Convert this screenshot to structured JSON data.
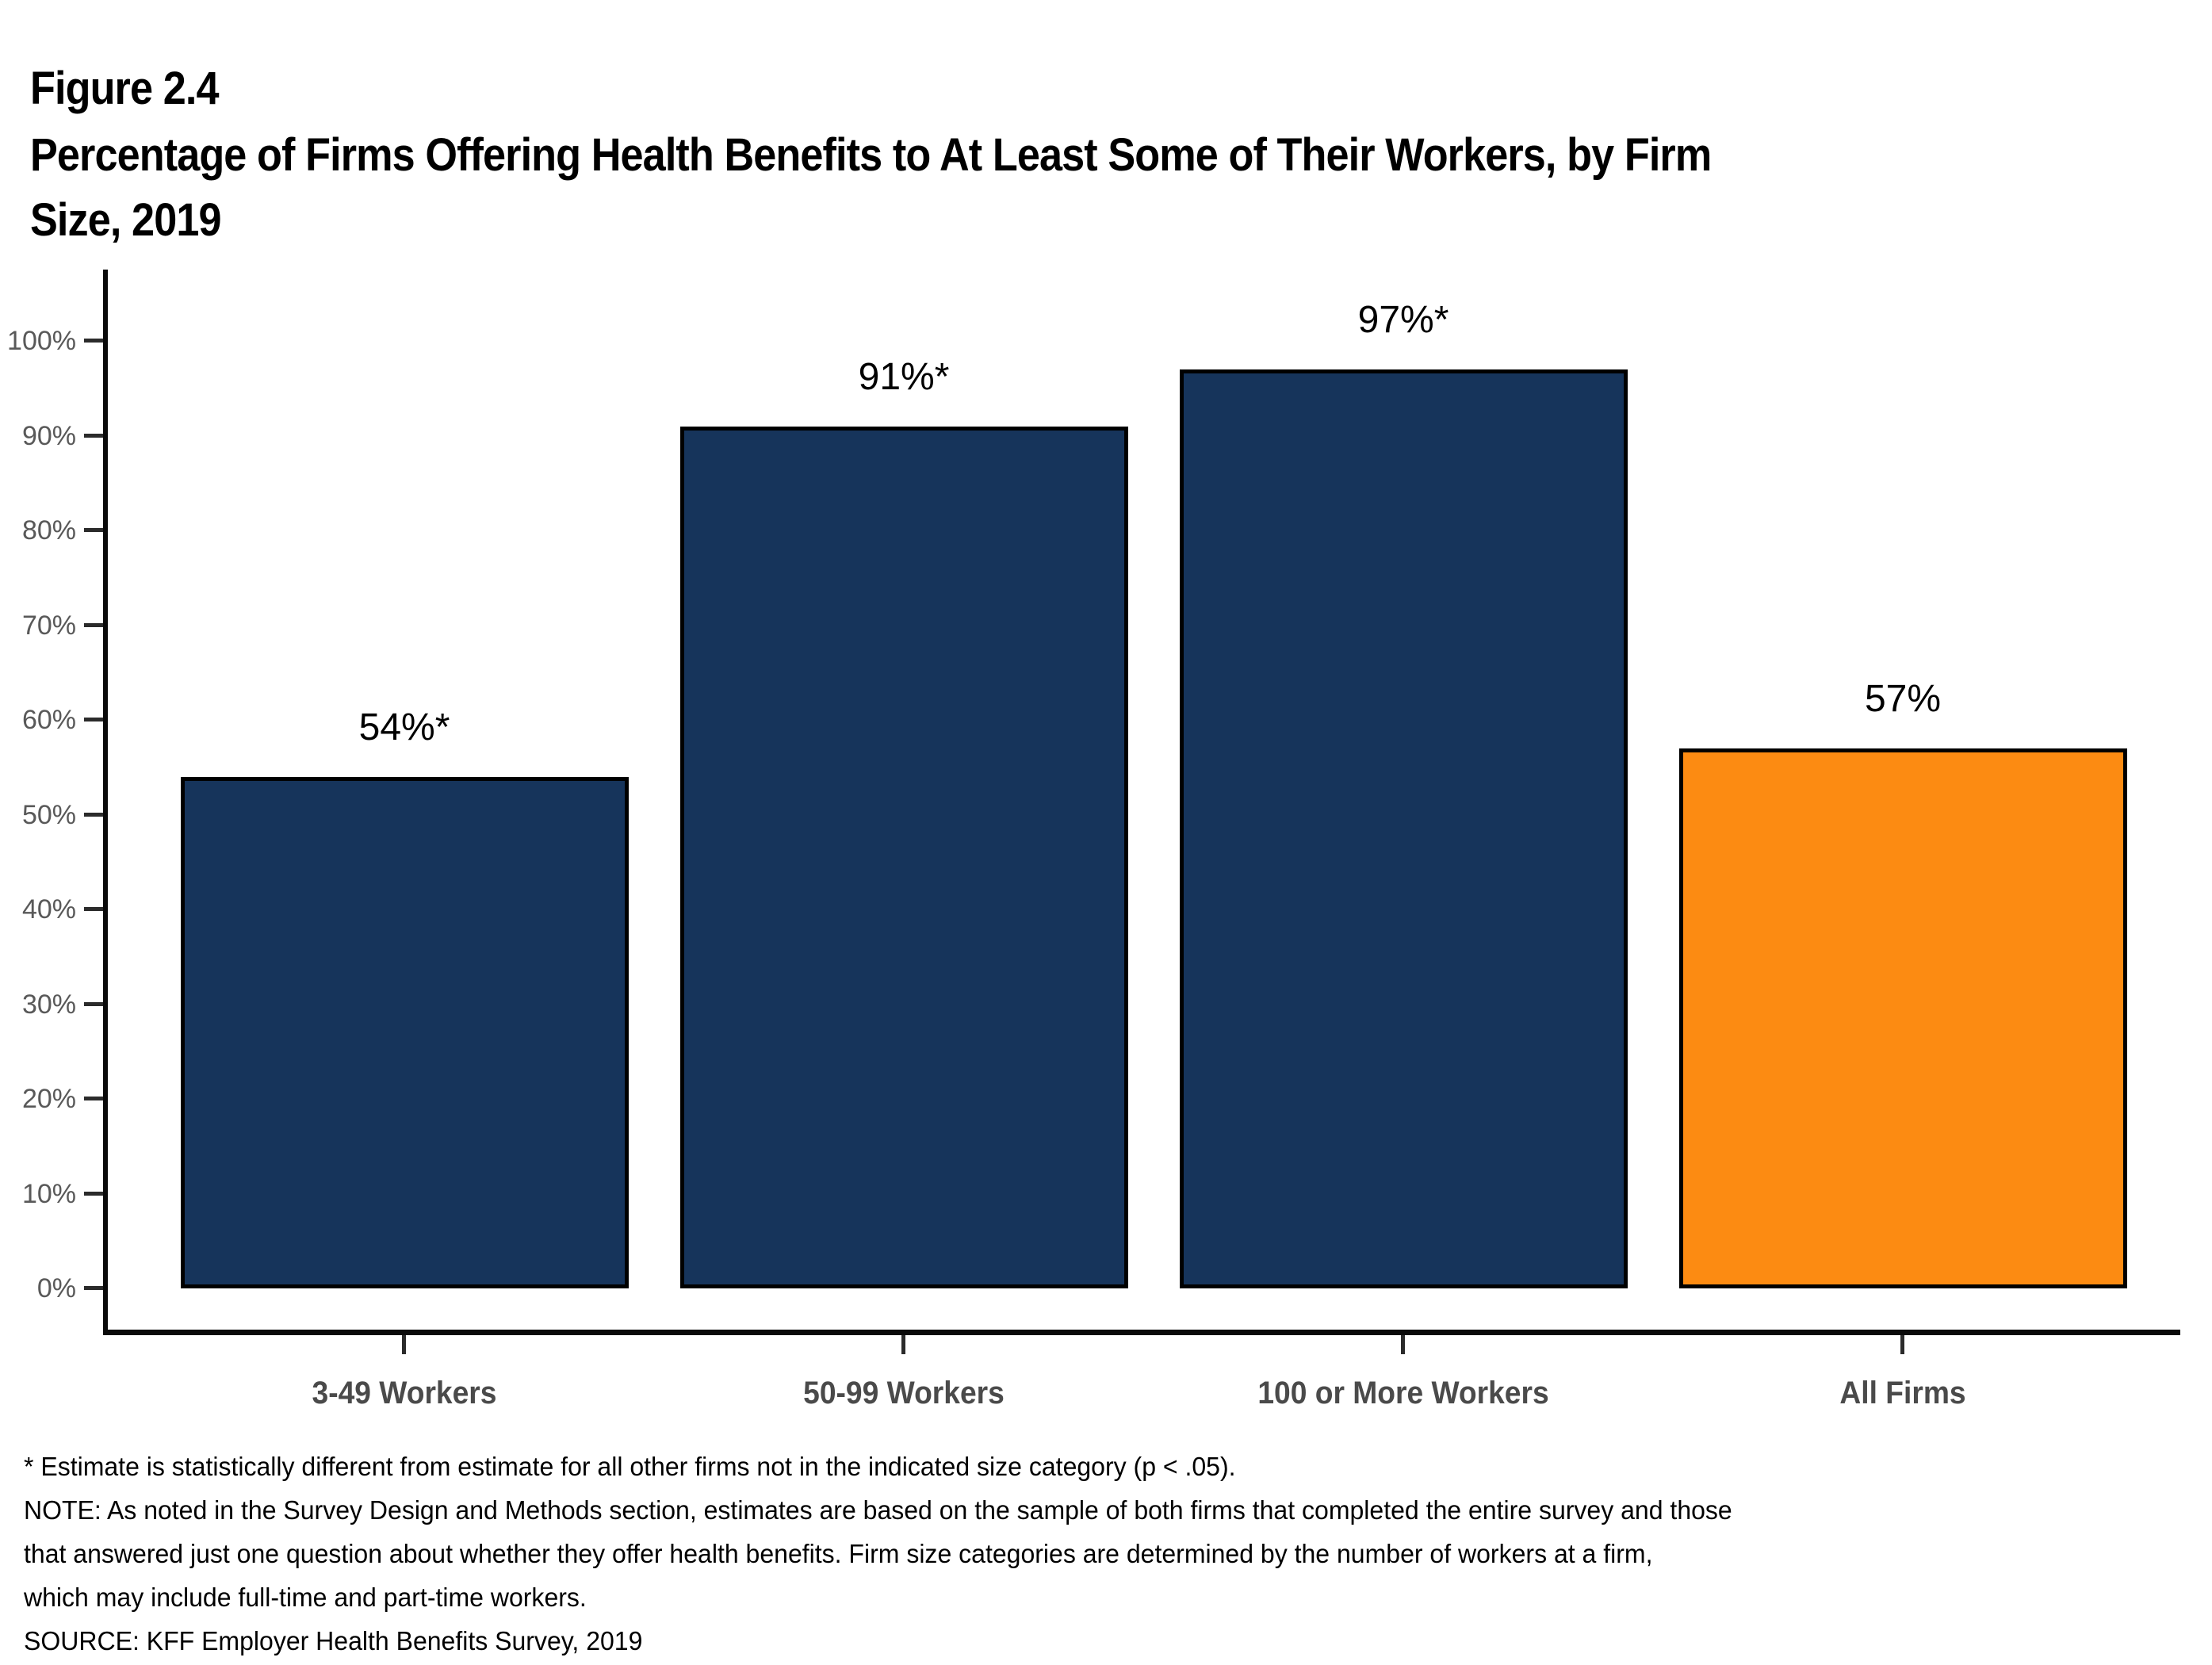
{
  "figure_label": "Figure 2.4",
  "title_lines": [
    "Percentage of Firms Offering Health Benefits to At Least Some of Their Workers, by Firm",
    "Size, 2019"
  ],
  "chart_data": {
    "type": "bar",
    "title": "Percentage of Firms Offering Health Benefits to At Least Some of Their Workers, by Firm Size, 2019",
    "categories": [
      "3-49 Workers",
      "50-99 Workers",
      "100 or More Workers",
      "All Firms"
    ],
    "values": [
      54,
      91,
      97,
      57
    ],
    "value_labels": [
      "54%*",
      "91%*",
      "97%*",
      "57%"
    ],
    "xlabel": "",
    "ylabel": "",
    "ylim": [
      0,
      100
    ],
    "ytick_step": 10,
    "ytick_suffix": "%",
    "grid": false,
    "legend_position": "none",
    "bar_colors": [
      "#16345B",
      "#16345B",
      "#16345B",
      "#FC8B12"
    ],
    "colors": {
      "bar_default": "#16345B",
      "bar_highlight": "#FC8B12",
      "bar_border": "#000000",
      "axis": "#0a0a0a",
      "tick_label": "#595959",
      "category_label": "#4a4a4a"
    }
  },
  "footnotes": [
    "* Estimate is statistically different from estimate for all other firms not in the indicated size category (p < .05).",
    "NOTE: As noted in the Survey Design and Methods section, estimates are based on the sample of both firms that completed the entire survey and those",
    "that answered just one question about whether they offer health benefits. Firm size categories are determined by the number of workers at a firm,",
    "which may include full-time and part-time workers.",
    "SOURCE: KFF Employer Health Benefits Survey, 2019"
  ]
}
